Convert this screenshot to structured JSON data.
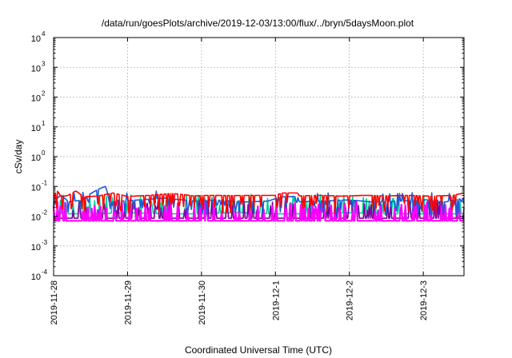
{
  "chart_data": {
    "type": "line",
    "title": "/data/run/goesPlots/archive/2019-12-03/13:00/flux/../bryn/5daysMoon.plot",
    "xlabel": "Coordinated Universal Time (UTC)",
    "ylabel": "cSv/day",
    "yscale": "log",
    "ylim": [
      0.0001,
      10000
    ],
    "y_ticks": [
      {
        "base": "10",
        "exp": "4"
      },
      {
        "base": "10",
        "exp": "3"
      },
      {
        "base": "10",
        "exp": "2"
      },
      {
        "base": "10",
        "exp": "1"
      },
      {
        "base": "10",
        "exp": "0"
      },
      {
        "base": "10",
        "exp": "-1"
      },
      {
        "base": "10",
        "exp": "-2"
      },
      {
        "base": "10",
        "exp": "-3"
      },
      {
        "base": "10",
        "exp": "-4"
      }
    ],
    "x_ticks": [
      "2019-11-28",
      "2019-11-29",
      "2019-11-30",
      "2019-12-1",
      "2019-12-2",
      "2019-12-3"
    ],
    "xlim_days": [
      0,
      5.55
    ],
    "grid": true,
    "legend": "none",
    "x_unit": "days since 2019-11-28 00:00 UTC",
    "series": [
      {
        "color": "#ff0000",
        "baseline": 0.048,
        "points": [
          [
            0,
            0.045
          ],
          [
            0.05,
            0.07
          ],
          [
            0.1,
            0.045
          ],
          [
            0.2,
            0.05
          ],
          [
            0.3,
            0.07
          ],
          [
            0.4,
            0.045
          ],
          [
            0.6,
            0.047
          ],
          [
            0.8,
            0.06
          ],
          [
            1.0,
            0.046
          ],
          [
            1.3,
            0.05
          ],
          [
            1.6,
            0.058
          ],
          [
            1.9,
            0.048
          ],
          [
            2.1,
            0.05
          ],
          [
            2.4,
            0.049
          ],
          [
            2.7,
            0.05
          ],
          [
            3.0,
            0.05
          ],
          [
            3.1,
            0.06
          ],
          [
            3.3,
            0.06
          ],
          [
            3.32,
            0.048
          ],
          [
            3.6,
            0.05
          ],
          [
            3.9,
            0.047
          ],
          [
            4.2,
            0.05
          ],
          [
            4.5,
            0.048
          ],
          [
            4.8,
            0.05
          ],
          [
            5.1,
            0.047
          ],
          [
            5.4,
            0.05
          ],
          [
            5.55,
            0.06
          ]
        ]
      },
      {
        "color": "#1b5bd6",
        "baseline": 0.032,
        "points": [
          [
            0,
            0.03
          ],
          [
            0.1,
            0.05
          ],
          [
            0.2,
            0.03
          ],
          [
            0.4,
            0.035
          ],
          [
            0.7,
            0.1
          ],
          [
            0.75,
            0.03
          ],
          [
            1.0,
            0.033
          ],
          [
            1.5,
            0.04
          ],
          [
            1.9,
            0.032
          ],
          [
            2.2,
            0.035
          ],
          [
            2.6,
            0.03
          ],
          [
            2.9,
            0.032
          ],
          [
            3.1,
            0.045
          ],
          [
            3.3,
            0.045
          ],
          [
            3.32,
            0.03
          ],
          [
            3.7,
            0.033
          ],
          [
            4.0,
            0.035
          ],
          [
            4.3,
            0.03
          ],
          [
            4.7,
            0.032
          ],
          [
            5.0,
            0.036
          ],
          [
            5.3,
            0.03
          ],
          [
            5.55,
            0.04
          ]
        ]
      },
      {
        "color": "#00d09a",
        "baseline": 0.012,
        "points": [
          [
            0,
            0.012
          ],
          [
            0.5,
            0.012
          ],
          [
            1.0,
            0.013
          ],
          [
            1.5,
            0.012
          ],
          [
            2.0,
            0.012
          ],
          [
            2.5,
            0.013
          ],
          [
            3.0,
            0.012
          ],
          [
            3.5,
            0.012
          ],
          [
            4.0,
            0.013
          ],
          [
            4.5,
            0.012
          ],
          [
            5.0,
            0.012
          ],
          [
            5.55,
            0.012
          ]
        ]
      },
      {
        "color": "#8000a0",
        "baseline": 0.0085,
        "points": [
          [
            0,
            0.0085
          ],
          [
            0.5,
            0.0085
          ],
          [
            1.0,
            0.0085
          ],
          [
            1.5,
            0.0085
          ],
          [
            2.0,
            0.0085
          ],
          [
            2.5,
            0.0085
          ],
          [
            3.0,
            0.0085
          ],
          [
            3.5,
            0.0085
          ],
          [
            4.0,
            0.0085
          ],
          [
            4.5,
            0.0085
          ],
          [
            5.0,
            0.0085
          ],
          [
            5.55,
            0.0085
          ]
        ]
      },
      {
        "color": "#ff00ff",
        "baseline": 0.007,
        "points": [
          [
            0,
            0.007
          ],
          [
            0.5,
            0.007
          ],
          [
            1.0,
            0.007
          ],
          [
            1.5,
            0.007
          ],
          [
            2.0,
            0.007
          ],
          [
            2.5,
            0.007
          ],
          [
            3.0,
            0.007
          ],
          [
            3.5,
            0.007
          ],
          [
            4.0,
            0.007
          ],
          [
            4.5,
            0.007
          ],
          [
            5.0,
            0.007
          ],
          [
            5.55,
            0.007
          ]
        ]
      }
    ]
  }
}
